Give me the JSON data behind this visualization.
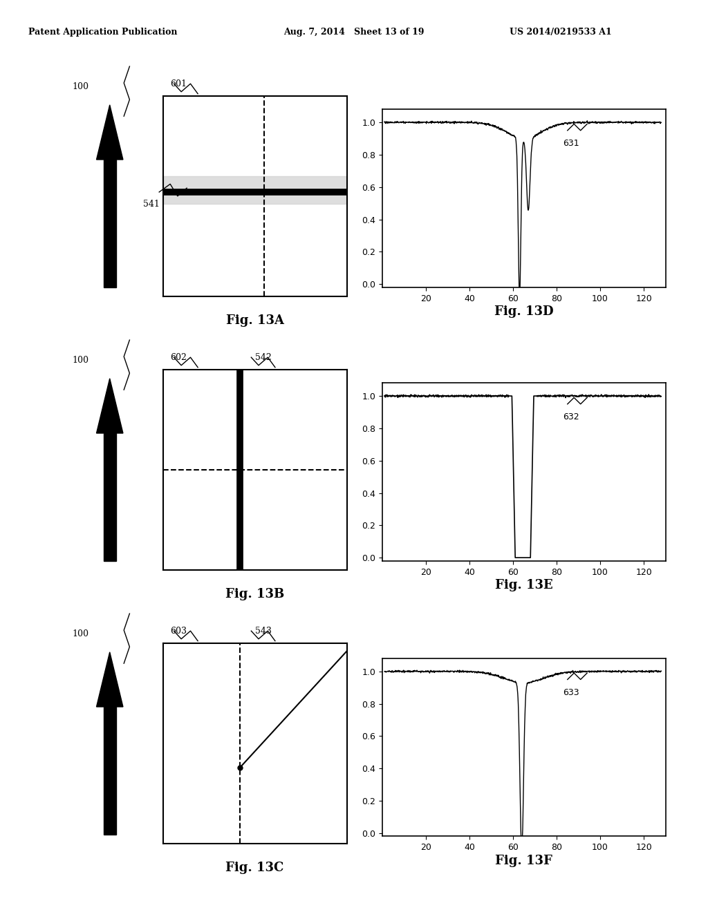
{
  "header_left": "Patent Application Publication",
  "header_mid": "Aug. 7, 2014   Sheet 13 of 19",
  "header_right": "US 2014/0219533 A1",
  "background": "#ffffff",
  "page_width": 10.24,
  "page_height": 13.2,
  "left_boxes": [
    {
      "label_fig": "601",
      "label_struct": "541",
      "type": "A"
    },
    {
      "label_fig": "602",
      "label_struct": "542",
      "type": "B"
    },
    {
      "label_fig": "603",
      "label_struct": "543",
      "type": "C"
    }
  ],
  "right_graphs": [
    {
      "label": "631",
      "fig": "13D",
      "type": "D"
    },
    {
      "label": "632",
      "fig": "13E",
      "type": "E"
    },
    {
      "label": "633",
      "fig": "13F",
      "type": "F"
    }
  ],
  "fig_label_fontsize": 13,
  "tick_fontsize": 9,
  "annotation_fontsize": 9,
  "header_fontsize": 9
}
